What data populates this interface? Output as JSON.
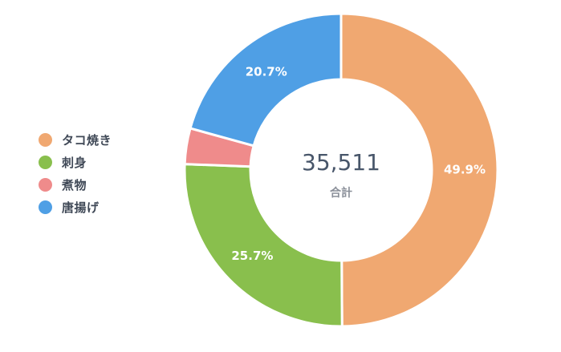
{
  "chart_data": {
    "type": "pie",
    "donut": true,
    "categories": [
      "タコ焼き",
      "刺身",
      "煮物",
      "唐揚げ"
    ],
    "values": [
      49.9,
      25.7,
      3.7,
      20.7
    ],
    "labels": [
      "49.9%",
      "25.7%",
      "",
      "20.7%"
    ],
    "colors": [
      "#f0a871",
      "#89bf4d",
      "#ef8b8b",
      "#4f9fe5"
    ],
    "center": {
      "total": "35,511",
      "caption": "合計"
    },
    "legend_position": "left"
  }
}
